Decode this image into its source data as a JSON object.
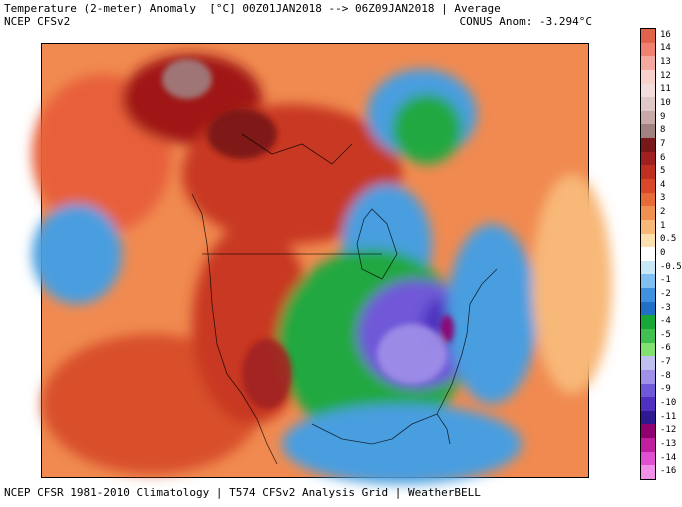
{
  "header": {
    "title": "Temperature (2-meter) Anomaly  [°C] 00Z01JAN2018 --> 06Z09JAN2018 | Average",
    "model": "NCEP CFSv2",
    "conus_anomaly": "CONUS Anom: -3.294°C"
  },
  "footer": "NCEP CFSR 1981-2010 Climatology | T574 CFSv2 Analysis Grid | WeatherBELL",
  "colorbar": {
    "labels": [
      "16",
      "14",
      "13",
      "12",
      "11",
      "10",
      "9",
      "8",
      "7",
      "6",
      "5",
      "4",
      "3",
      "2",
      "1",
      "0.5",
      "0",
      "-0.5",
      "-1",
      "-2",
      "-3",
      "-4",
      "-5",
      "-6",
      "-7",
      "-8",
      "-9",
      "-10",
      "-11",
      "-12",
      "-13",
      "-14",
      "-16"
    ],
    "colors": [
      "#e0624a",
      "#f08070",
      "#f4a8a0",
      "#f8d0cc",
      "#f2dcdc",
      "#e0c8c8",
      "#c8a8a8",
      "#a08080",
      "#781818",
      "#a02020",
      "#c03020",
      "#d84828",
      "#e86a38",
      "#f09050",
      "#f8b878",
      "#fde0b0",
      "#ffffff",
      "#c8e8f8",
      "#80c0f0",
      "#4090e0",
      "#2070c8",
      "#18a838",
      "#40c050",
      "#80e070",
      "#c0c0f0",
      "#a090e8",
      "#7058d8",
      "#5030c0",
      "#301890",
      "#900070",
      "#c020a0",
      "#e050d0",
      "#f090e8"
    ]
  },
  "map": {
    "description_colors": {
      "warm": "#c83820",
      "hot": "#a01818",
      "mild": "#f08a50",
      "cool": "#4a9ee0",
      "cold": "#20a840",
      "very_cold": "#7058d8"
    }
  }
}
